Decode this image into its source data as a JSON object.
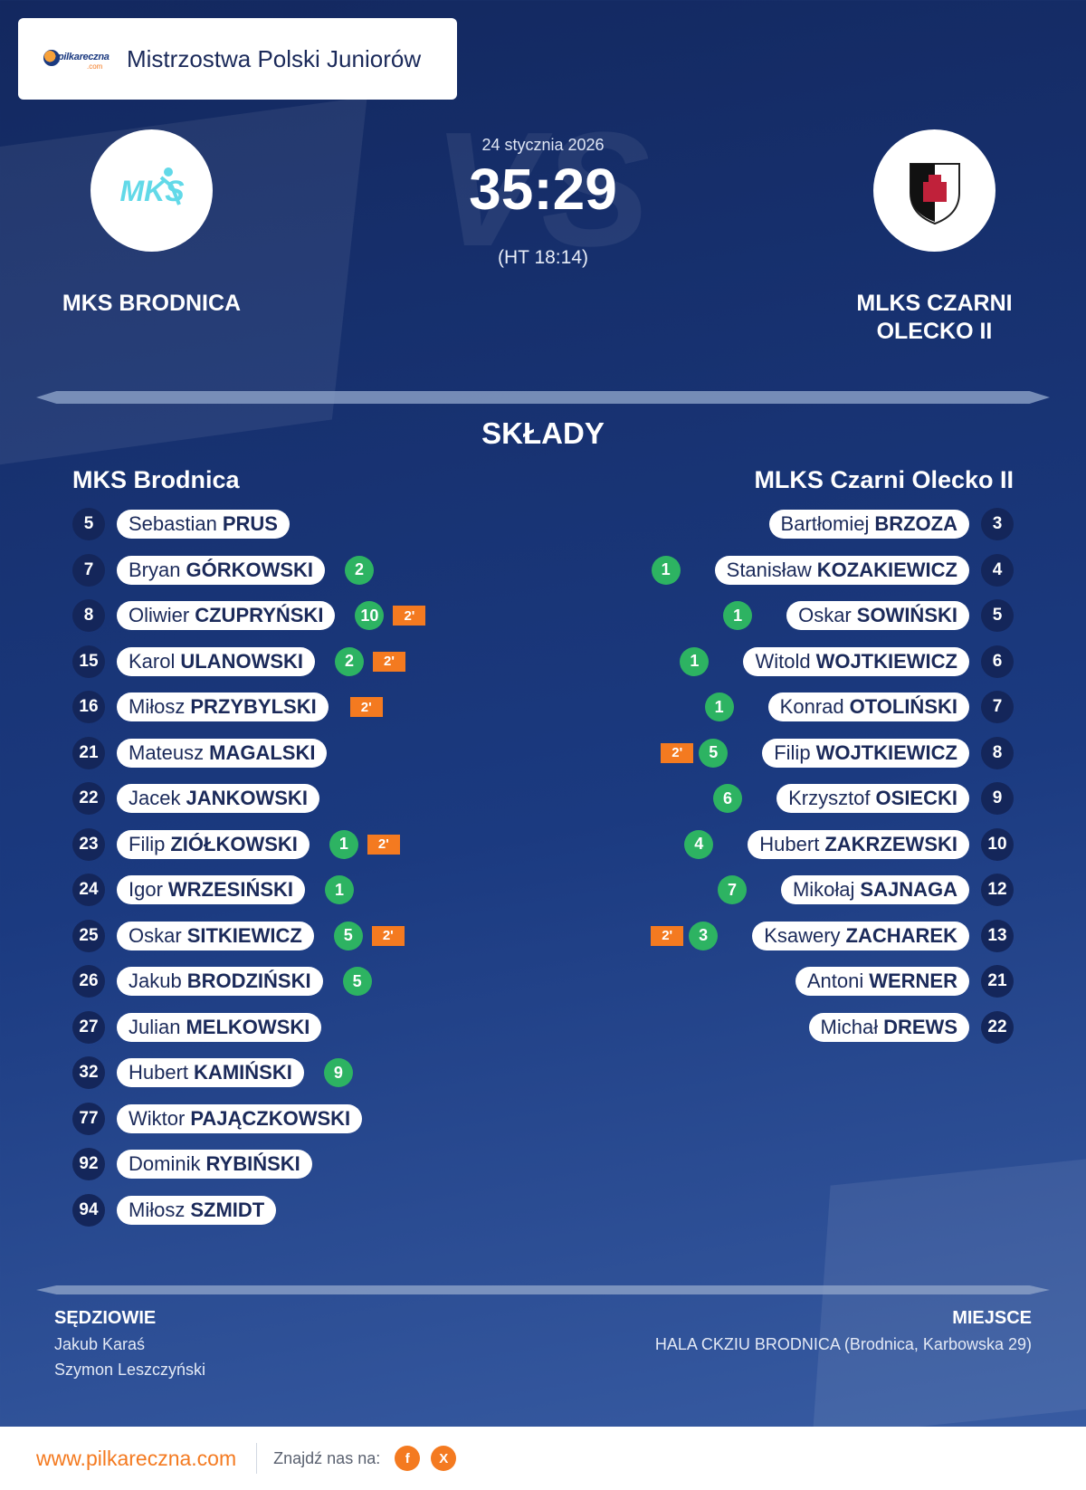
{
  "header": {
    "logo_text": "pilkareczna",
    "logo_suffix": ".com",
    "title": "Mistrzostwa Polski Juniorów"
  },
  "match": {
    "date": "24 stycznia 2026",
    "score": "35:29",
    "halftime": "(HT 18:14)",
    "vs_text": "VS"
  },
  "home": {
    "name": "MKS BRODNICA",
    "roster_title": "MKS Brodnica",
    "logo_text": "MKS",
    "players": [
      {
        "number": "5",
        "first": "Sebastian",
        "last": "PRUS",
        "goals": "",
        "penalty": ""
      },
      {
        "number": "7",
        "first": "Bryan",
        "last": "GÓRKOWSKI",
        "goals": "2",
        "penalty": ""
      },
      {
        "number": "8",
        "first": "Oliwier",
        "last": "CZUPRYŃSKI",
        "goals": "10",
        "penalty": "2'"
      },
      {
        "number": "15",
        "first": "Karol",
        "last": "ULANOWSKI",
        "goals": "2",
        "penalty": "2'"
      },
      {
        "number": "16",
        "first": "Miłosz",
        "last": "PRZYBYLSKI",
        "goals": "",
        "penalty": "2'"
      },
      {
        "number": "21",
        "first": "Mateusz",
        "last": "MAGALSKI",
        "goals": "",
        "penalty": ""
      },
      {
        "number": "22",
        "first": "Jacek",
        "last": "JANKOWSKI",
        "goals": "",
        "penalty": ""
      },
      {
        "number": "23",
        "first": "Filip",
        "last": "ZIÓŁKOWSKI",
        "goals": "1",
        "penalty": "2'"
      },
      {
        "number": "24",
        "first": "Igor",
        "last": "WRZESIŃSKI",
        "goals": "1",
        "penalty": ""
      },
      {
        "number": "25",
        "first": "Oskar",
        "last": "SITKIEWICZ",
        "goals": "5",
        "penalty": "2'"
      },
      {
        "number": "26",
        "first": "Jakub",
        "last": "BRODZIŃSKI",
        "goals": "5",
        "penalty": ""
      },
      {
        "number": "27",
        "first": "Julian",
        "last": "MELKOWSKI",
        "goals": "",
        "penalty": ""
      },
      {
        "number": "32",
        "first": "Hubert",
        "last": "KAMIŃSKI",
        "goals": "9",
        "penalty": ""
      },
      {
        "number": "77",
        "first": "Wiktor",
        "last": "PAJĄCZKOWSKI",
        "goals": "",
        "penalty": ""
      },
      {
        "number": "92",
        "first": "Dominik",
        "last": "RYBIŃSKI",
        "goals": "",
        "penalty": ""
      },
      {
        "number": "94",
        "first": "Miłosz",
        "last": "SZMIDT",
        "goals": "",
        "penalty": ""
      }
    ]
  },
  "away": {
    "name": "MLKS CZARNI OLECKO II",
    "roster_title": "MLKS Czarni Olecko II",
    "players": [
      {
        "number": "3",
        "first": "Bartłomiej",
        "last": "BRZOZA",
        "goals": "",
        "penalty": ""
      },
      {
        "number": "4",
        "first": "Stanisław",
        "last": "KOZAKIEWICZ",
        "goals": "1",
        "penalty": ""
      },
      {
        "number": "5",
        "first": "Oskar",
        "last": "SOWIŃSKI",
        "goals": "1",
        "penalty": ""
      },
      {
        "number": "6",
        "first": "Witold",
        "last": "WOJTKIEWICZ",
        "goals": "1",
        "penalty": ""
      },
      {
        "number": "7",
        "first": "Konrad",
        "last": "OTOLIŃSKI",
        "goals": "1",
        "penalty": ""
      },
      {
        "number": "8",
        "first": "Filip",
        "last": "WOJTKIEWICZ",
        "goals": "5",
        "penalty": "2'"
      },
      {
        "number": "9",
        "first": "Krzysztof",
        "last": "OSIECKI",
        "goals": "6",
        "penalty": ""
      },
      {
        "number": "10",
        "first": "Hubert",
        "last": "ZAKRZEWSKI",
        "goals": "4",
        "penalty": ""
      },
      {
        "number": "12",
        "first": "Mikołaj",
        "last": "SAJNAGA",
        "goals": "7",
        "penalty": ""
      },
      {
        "number": "13",
        "first": "Ksawery",
        "last": "ZACHAREK",
        "goals": "3",
        "penalty": "2'"
      },
      {
        "number": "21",
        "first": "Antoni",
        "last": "WERNER",
        "goals": "",
        "penalty": ""
      },
      {
        "number": "22",
        "first": "Michał",
        "last": "DREWS",
        "goals": "",
        "penalty": ""
      }
    ]
  },
  "lineups_title": "SKŁADY",
  "referees": {
    "label": "SĘDZIOWIE",
    "names": [
      "Jakub Karaś",
      "Szymon Leszczyński"
    ]
  },
  "venue": {
    "label": "MIEJSCE",
    "text": "HALA CKZIU  BRODNICA (Brodnica, Karbowska 29)"
  },
  "footer": {
    "site": "www.pilkareczna.com",
    "find_us": "Znajdź nas na:",
    "social": [
      {
        "icon": "facebook-icon",
        "glyph": "f"
      },
      {
        "icon": "x-icon",
        "glyph": "X"
      }
    ]
  },
  "colors": {
    "background": "#1b3a80",
    "goals": "#2db362",
    "penalty": "#f47a20",
    "accent": "#f47a20"
  }
}
